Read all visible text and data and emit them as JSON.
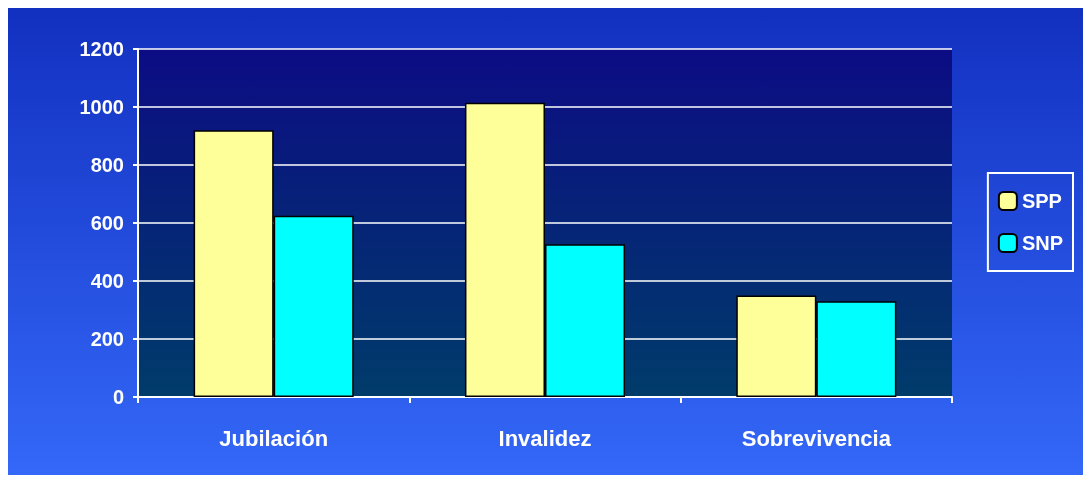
{
  "chart_data": {
    "type": "bar",
    "categories": [
      "Jubilación",
      "Invalidez",
      "Sobrevivencia"
    ],
    "series": [
      {
        "name": "SPP",
        "color": "#ffff99",
        "values": [
          920,
          1015,
          350
        ]
      },
      {
        "name": "SNP",
        "color": "#00ffff",
        "values": [
          625,
          527,
          330
        ]
      }
    ],
    "ylim": [
      0,
      1200
    ],
    "yticks": [
      0,
      200,
      400,
      600,
      800,
      1000,
      1200
    ],
    "grid": "y",
    "legend": "right"
  }
}
